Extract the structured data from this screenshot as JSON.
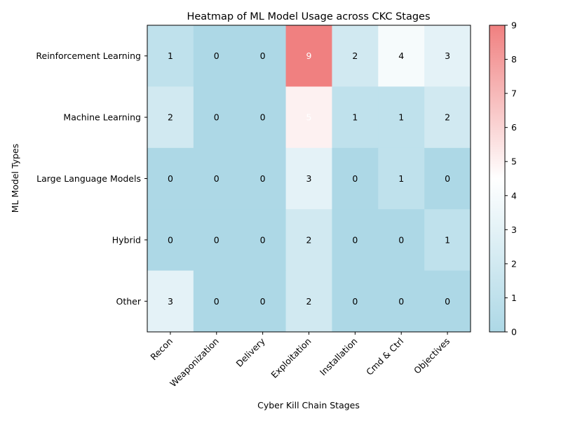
{
  "chart_data": {
    "type": "heatmap",
    "title": "Heatmap of ML Model Usage across CKC Stages",
    "xlabel": "Cyber Kill Chain Stages",
    "ylabel": "ML Model Types",
    "columns": [
      "Recon",
      "Weaponization",
      "Delivery",
      "Exploitation",
      "Installation",
      "Cmd & Ctrl",
      "Objectives"
    ],
    "rows": [
      "Reinforcement Learning",
      "Machine Learning",
      "Large Language Models",
      "Hybrid",
      "Other"
    ],
    "values": [
      [
        1,
        0,
        0,
        9,
        2,
        4,
        3
      ],
      [
        2,
        0,
        0,
        5,
        1,
        1,
        2
      ],
      [
        0,
        0,
        0,
        3,
        0,
        1,
        0
      ],
      [
        0,
        0,
        0,
        2,
        0,
        0,
        1
      ],
      [
        3,
        0,
        0,
        2,
        0,
        0,
        0
      ]
    ],
    "colorbar": {
      "min": 0,
      "max": 9,
      "ticks": [
        "0",
        "1",
        "2",
        "3",
        "4",
        "5",
        "6",
        "7",
        "8",
        "9"
      ],
      "colors": [
        "#add8e6",
        "#ffffff",
        "#f08080"
      ]
    }
  }
}
